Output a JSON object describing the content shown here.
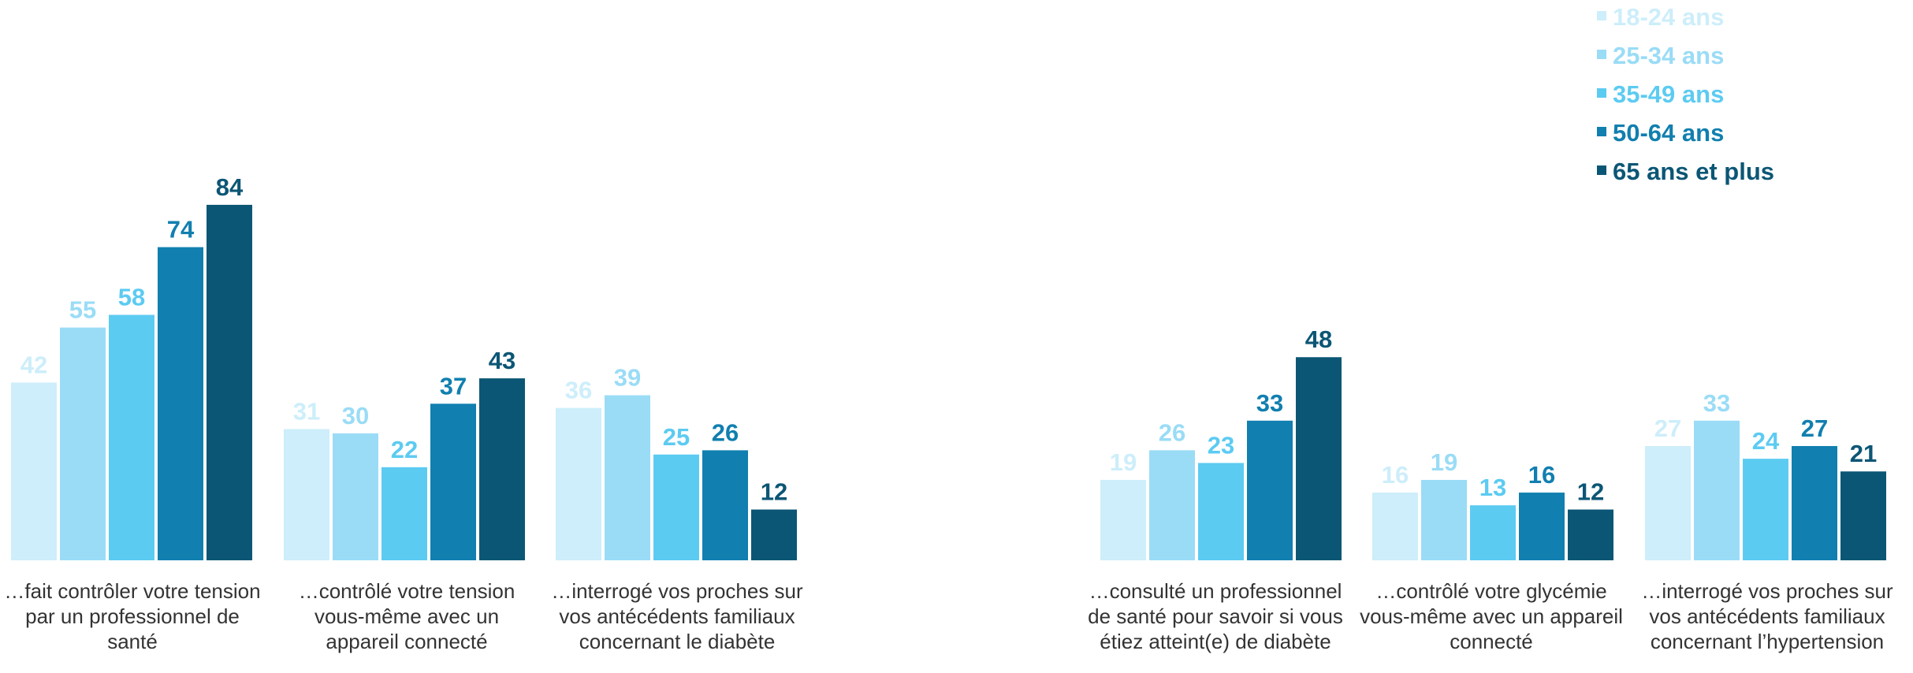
{
  "chart_data": {
    "type": "bar",
    "legend_position": "top-right",
    "grid": false,
    "ylim": [
      0,
      100
    ],
    "series": [
      {
        "name": "18-24 ans",
        "color": "#cdeefa"
      },
      {
        "name": "25-34 ans",
        "color": "#9adcf6"
      },
      {
        "name": "35-49 ans",
        "color": "#5ccbf2"
      },
      {
        "name": "50-64 ans",
        "color": "#117faf"
      },
      {
        "name": "65 ans et plus",
        "color": "#0c5675"
      }
    ],
    "groups": [
      {
        "label": "…fait contrôler votre tension par un professionnel de santé",
        "values": [
          42,
          55,
          58,
          74,
          84
        ]
      },
      {
        "label": "…contrôlé votre tension vous-même avec un appareil connecté",
        "values": [
          31,
          30,
          22,
          37,
          43
        ]
      },
      {
        "label": "…interrogé vos proches sur vos antécédents familiaux concernant le diabète",
        "values": [
          36,
          39,
          25,
          26,
          12
        ]
      },
      {
        "label": "…consulté un professionnel de santé pour savoir si vous étiez atteint(e) de diabète",
        "values": [
          19,
          26,
          23,
          33,
          48
        ]
      },
      {
        "label": "…contrôlé votre glycémie vous-même avec un appareil connecté",
        "values": [
          16,
          19,
          13,
          16,
          12
        ]
      },
      {
        "label": "…interrogé vos proches sur vos antécédents familiaux concernant l’hypertension",
        "values": [
          27,
          33,
          24,
          27,
          21
        ]
      }
    ]
  }
}
